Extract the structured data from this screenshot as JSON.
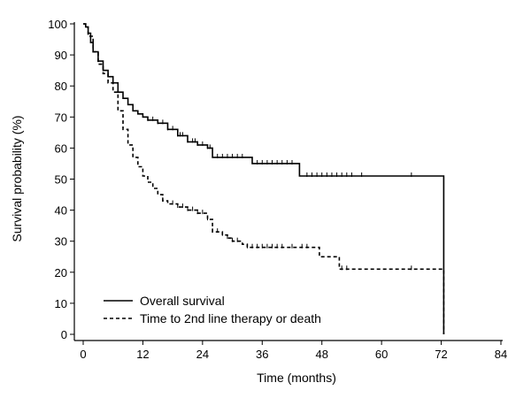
{
  "chart_data": {
    "type": "line",
    "subtype": "kaplan-meier step curves",
    "xlabel": "Time (months)",
    "ylabel": "Survival probability (%)",
    "xlim": [
      0,
      84
    ],
    "ylim": [
      0,
      100
    ],
    "x_ticks": [
      0,
      12,
      24,
      36,
      48,
      60,
      72,
      84
    ],
    "y_ticks": [
      0,
      10,
      20,
      30,
      40,
      50,
      60,
      70,
      80,
      90,
      100
    ],
    "grid": false,
    "legend_position": "bottom-left",
    "series": [
      {
        "name": "Overall survival",
        "style": "solid",
        "color": "#000000",
        "points": [
          [
            0,
            100
          ],
          [
            0.5,
            99
          ],
          [
            1,
            97
          ],
          [
            1.5,
            94
          ],
          [
            2,
            91
          ],
          [
            3,
            88
          ],
          [
            4,
            85
          ],
          [
            5,
            83
          ],
          [
            6,
            81
          ],
          [
            7,
            78
          ],
          [
            8,
            76
          ],
          [
            9,
            74
          ],
          [
            10,
            72
          ],
          [
            11,
            71
          ],
          [
            12,
            70
          ],
          [
            13,
            69
          ],
          [
            15,
            68
          ],
          [
            17,
            66
          ],
          [
            19,
            64
          ],
          [
            21,
            62
          ],
          [
            23,
            61
          ],
          [
            25,
            60
          ],
          [
            26,
            57
          ],
          [
            28,
            57
          ],
          [
            33,
            57
          ],
          [
            34,
            55
          ],
          [
            43,
            55
          ],
          [
            43.5,
            51
          ],
          [
            72,
            51
          ],
          [
            72.5,
            0
          ]
        ],
        "censor_times": [
          13,
          14,
          15,
          16,
          17,
          18,
          19,
          19.5,
          20,
          21,
          22,
          22.5,
          23,
          24,
          25,
          25.5,
          27,
          28,
          29,
          30,
          31,
          32,
          35,
          36,
          37,
          38,
          39,
          40,
          41,
          42,
          45,
          46,
          47,
          48,
          49,
          50,
          51,
          52,
          53,
          54,
          56,
          66
        ]
      },
      {
        "name": "Time to 2nd line therapy or death",
        "style": "dashed",
        "color": "#000000",
        "points": [
          [
            0,
            100
          ],
          [
            0.5,
            99
          ],
          [
            1,
            96
          ],
          [
            2,
            91
          ],
          [
            3,
            87
          ],
          [
            4,
            84
          ],
          [
            5,
            81
          ],
          [
            6,
            78
          ],
          [
            7,
            72
          ],
          [
            8,
            66
          ],
          [
            9,
            61
          ],
          [
            10,
            57
          ],
          [
            11,
            54
          ],
          [
            12,
            51
          ],
          [
            13,
            49
          ],
          [
            14,
            47
          ],
          [
            15,
            45
          ],
          [
            16,
            43
          ],
          [
            17,
            42
          ],
          [
            19,
            41
          ],
          [
            21,
            40
          ],
          [
            23,
            39
          ],
          [
            25,
            37
          ],
          [
            26,
            33
          ],
          [
            28,
            32
          ],
          [
            29,
            31
          ],
          [
            30,
            30
          ],
          [
            32,
            29
          ],
          [
            33,
            28
          ],
          [
            47,
            28
          ],
          [
            47.5,
            25
          ],
          [
            51,
            25
          ],
          [
            51.5,
            21
          ],
          [
            72,
            21
          ],
          [
            72.5,
            0
          ]
        ],
        "censor_times": [
          16,
          18,
          19,
          20,
          21,
          22,
          23,
          24,
          25,
          26,
          27,
          28,
          29,
          30,
          31,
          33,
          34,
          35,
          36,
          37,
          38,
          39,
          40,
          42,
          44,
          45,
          52,
          53,
          66
        ]
      }
    ]
  }
}
